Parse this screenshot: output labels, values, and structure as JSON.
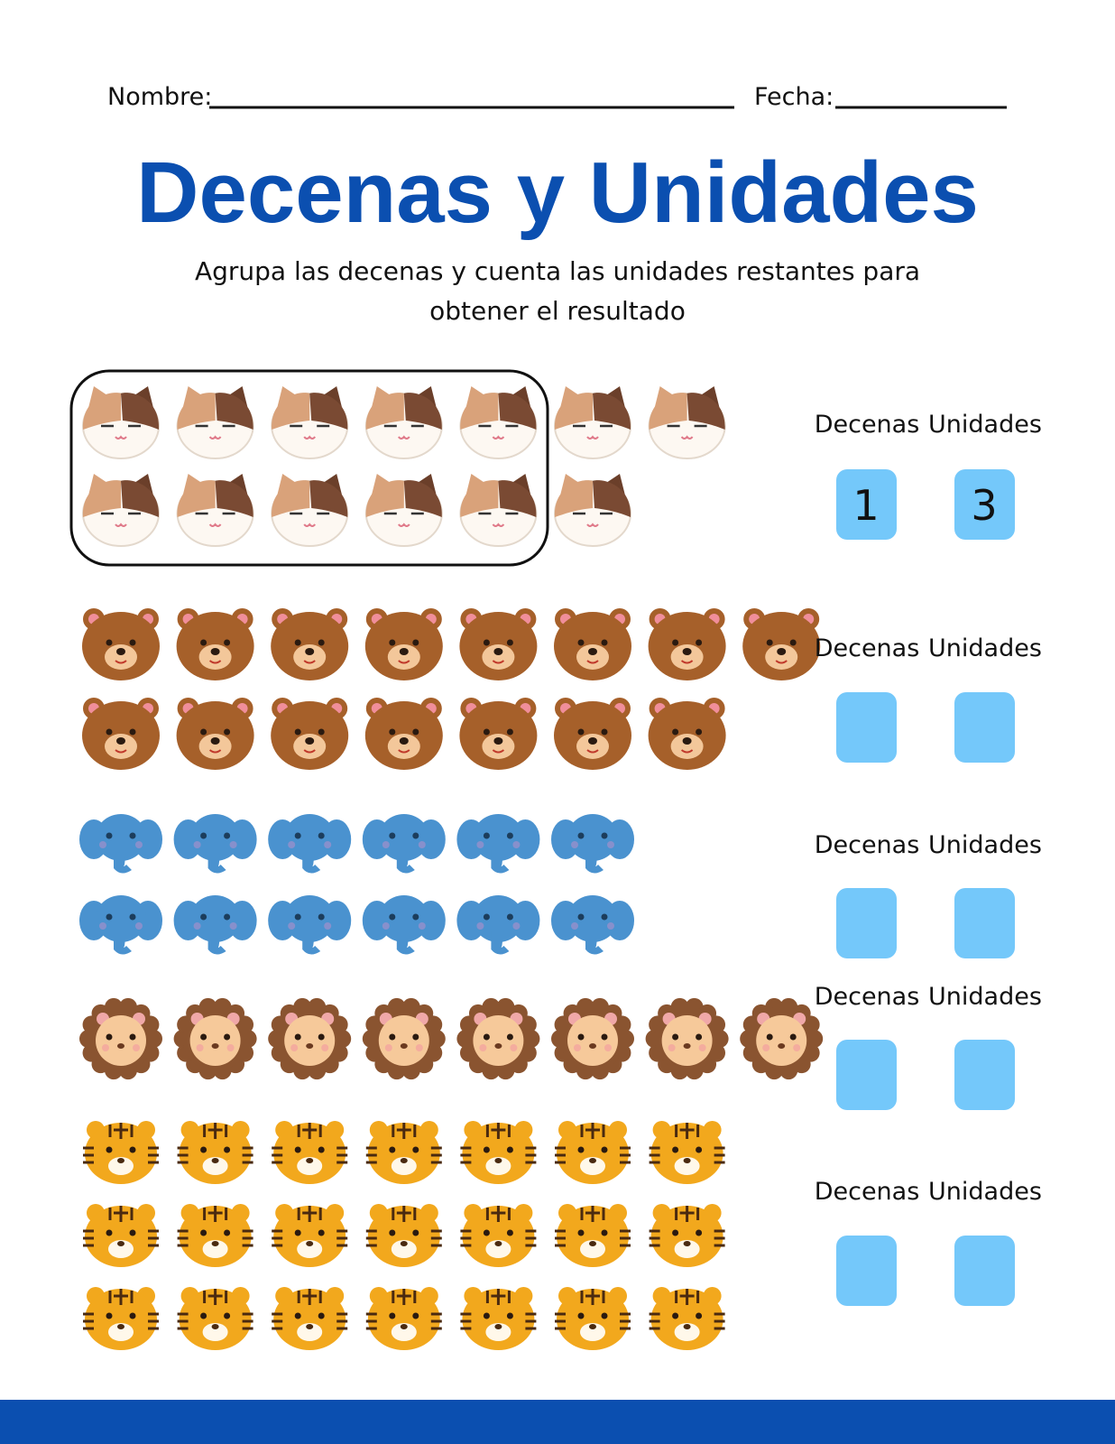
{
  "header": {
    "name_label": "Nombre:",
    "date_label": "Fecha:"
  },
  "title": "Decenas y Unidades",
  "instructions": [
    "Agrupa las decenas y cuenta las unidades restantes para",
    "obtener el resultado"
  ],
  "exercises": [
    {
      "animal": "cat",
      "rows": [
        7,
        6
      ],
      "grouped": 10,
      "tens_label": "Decenas",
      "units_label": "Unidades",
      "tens_answer": 1,
      "units_answer": 3
    },
    {
      "animal": "bear",
      "rows": [
        8,
        7
      ],
      "tens_label": "Decenas",
      "units_label": "Unidades"
    },
    {
      "animal": "elephant",
      "rows": [
        6,
        6
      ],
      "tens_label": "Decenas",
      "units_label": "Unidades"
    },
    {
      "animal": "lion",
      "rows": [
        8
      ],
      "tens_label": "Decenas",
      "units_label": "Unidades"
    },
    {
      "animal": "tiger",
      "rows": [
        7,
        7,
        7
      ],
      "tens_label": "Decenas",
      "units_label": "Unidades"
    }
  ]
}
